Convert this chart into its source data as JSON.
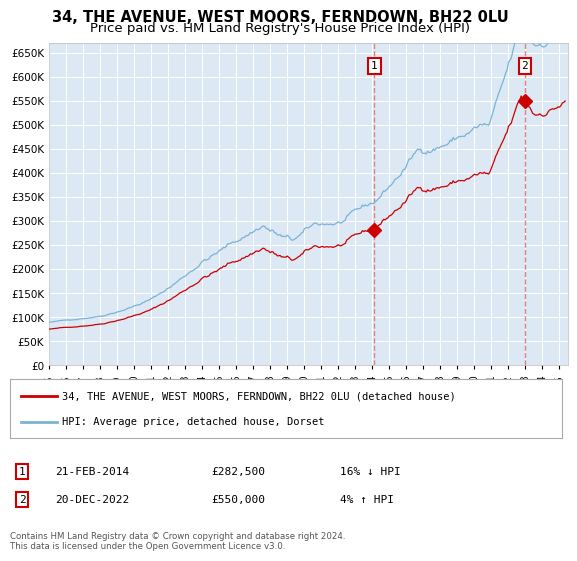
{
  "title": "34, THE AVENUE, WEST MOORS, FERNDOWN, BH22 0LU",
  "subtitle": "Price paid vs. HM Land Registry's House Price Index (HPI)",
  "background_color": "#ffffff",
  "plot_bg_color": "#dce9f5",
  "grid_color": "#ffffff",
  "hpi_color": "#7ab3d4",
  "price_color": "#cc0000",
  "ylim": [
    0,
    670000
  ],
  "yticks": [
    0,
    50000,
    100000,
    150000,
    200000,
    250000,
    300000,
    350000,
    400000,
    450000,
    500000,
    550000,
    600000,
    650000
  ],
  "xlim_start": 1995.0,
  "xlim_end": 2025.5,
  "xticks": [
    1995,
    1996,
    1997,
    1998,
    1999,
    2000,
    2001,
    2002,
    2003,
    2004,
    2005,
    2006,
    2007,
    2008,
    2009,
    2010,
    2011,
    2012,
    2013,
    2014,
    2015,
    2016,
    2017,
    2018,
    2019,
    2020,
    2021,
    2022,
    2023,
    2024,
    2025
  ],
  "transaction1_date": 2014.12,
  "transaction1_price": 282500,
  "transaction1_label": "1",
  "transaction1_text": "21-FEB-2014",
  "transaction1_amount": "£282,500",
  "transaction1_hpi": "16% ↓ HPI",
  "transaction2_date": 2022.96,
  "transaction2_price": 550000,
  "transaction2_label": "2",
  "transaction2_text": "20-DEC-2022",
  "transaction2_amount": "£550,000",
  "transaction2_hpi": "4% ↑ HPI",
  "legend_line1": "34, THE AVENUE, WEST MOORS, FERNDOWN, BH22 0LU (detached house)",
  "legend_line2": "HPI: Average price, detached house, Dorset",
  "footer": "Contains HM Land Registry data © Crown copyright and database right 2024.\nThis data is licensed under the Open Government Licence v3.0.",
  "title_fontsize": 10.5,
  "subtitle_fontsize": 9.5
}
